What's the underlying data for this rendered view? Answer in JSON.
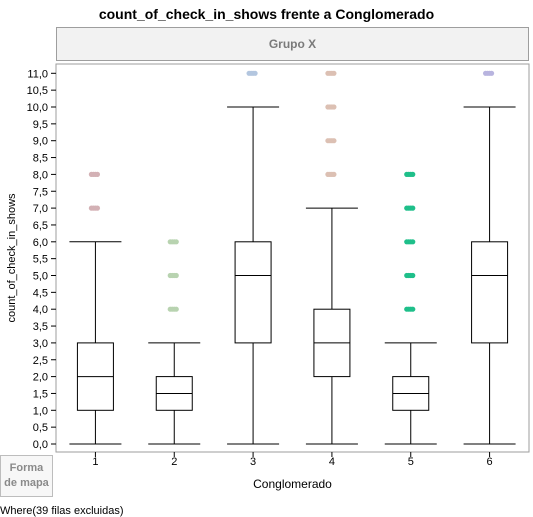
{
  "chart_data": {
    "type": "box",
    "title": "count_of_check_in_shows frente a Conglomerado",
    "group_header": "Grupo X",
    "xlabel": "Conglomerado",
    "ylabel": "count_of_check_in_shows",
    "categories": [
      "1",
      "2",
      "3",
      "4",
      "5",
      "6"
    ],
    "ylim": [
      0,
      11
    ],
    "yticks": [
      "0,0",
      "0,5",
      "1,0",
      "1,5",
      "2,0",
      "2,5",
      "3,0",
      "3,5",
      "4,0",
      "4,5",
      "5,0",
      "5,5",
      "6,0",
      "6,5",
      "7,0",
      "7,5",
      "8,0",
      "8,5",
      "9,0",
      "9,5",
      "10,0",
      "10,5",
      "11,0"
    ],
    "boxes": [
      {
        "category": "1",
        "min": 0,
        "q1": 1,
        "median": 2,
        "q3": 3,
        "max": 6,
        "outliers": [
          7,
          8
        ],
        "color": "#d3b1b5"
      },
      {
        "category": "2",
        "min": 0,
        "q1": 1,
        "median": 1.5,
        "q3": 2,
        "max": 3,
        "outliers": [
          4,
          5,
          6
        ],
        "color": "#b8d3b0"
      },
      {
        "category": "3",
        "min": 0,
        "q1": 3,
        "median": 5,
        "q3": 6,
        "max": 10,
        "outliers": [
          11
        ],
        "color": "#b3c6df"
      },
      {
        "category": "4",
        "min": 0,
        "q1": 2,
        "median": 3,
        "q3": 4,
        "max": 7,
        "outliers": [
          8,
          9,
          10,
          11
        ],
        "color": "#dcc0b3"
      },
      {
        "category": "5",
        "min": 0,
        "q1": 1,
        "median": 1.5,
        "q3": 2,
        "max": 3,
        "outliers": [
          4,
          5,
          6,
          7,
          8
        ],
        "color": "#1fbf8a"
      },
      {
        "category": "6",
        "min": 0,
        "q1": 3,
        "median": 5,
        "q3": 6,
        "max": 10,
        "outliers": [
          11
        ],
        "color": "#b8b4df"
      }
    ]
  },
  "map_shape_label": "Forma\nde mapa",
  "footer_text": "Where(39 filas excluidas)"
}
